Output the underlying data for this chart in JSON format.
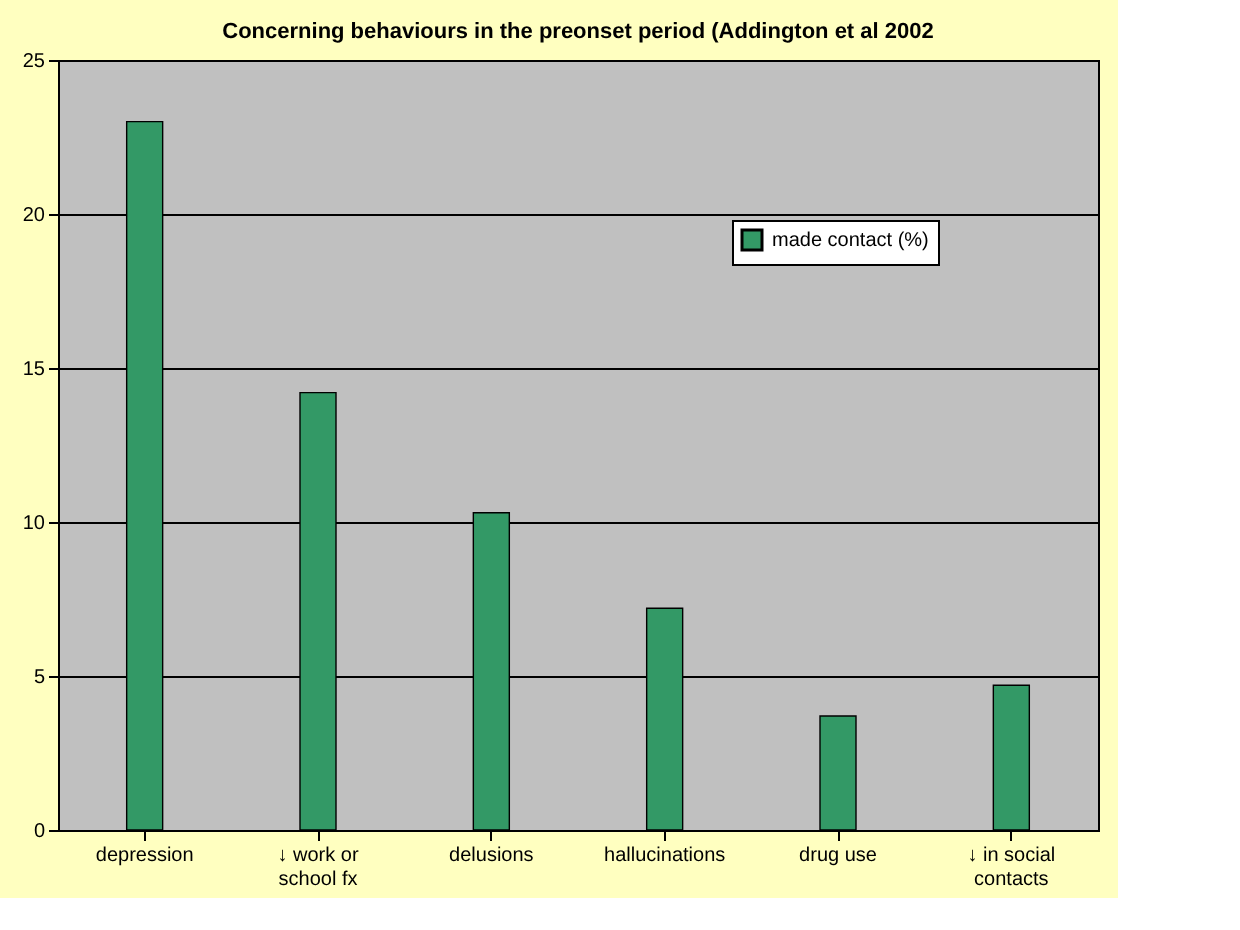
{
  "chart_data": {
    "type": "bar",
    "title": "Concerning behaviours in the preonset period (Addington et al 2002",
    "categories": [
      "depression",
      "↓ work or\nschool fx",
      "delusions",
      "hallucinations",
      "drug use",
      "↓ in social\ncontacts"
    ],
    "series": [
      {
        "name": "made contact (%)",
        "color": "#339966",
        "values": [
          23.0,
          14.2,
          10.3,
          7.2,
          3.7,
          4.7
        ]
      }
    ],
    "ylim": [
      0,
      25
    ],
    "yticks": [
      0,
      5,
      10,
      15,
      20,
      25
    ],
    "grid": "y",
    "legend": "top right"
  }
}
